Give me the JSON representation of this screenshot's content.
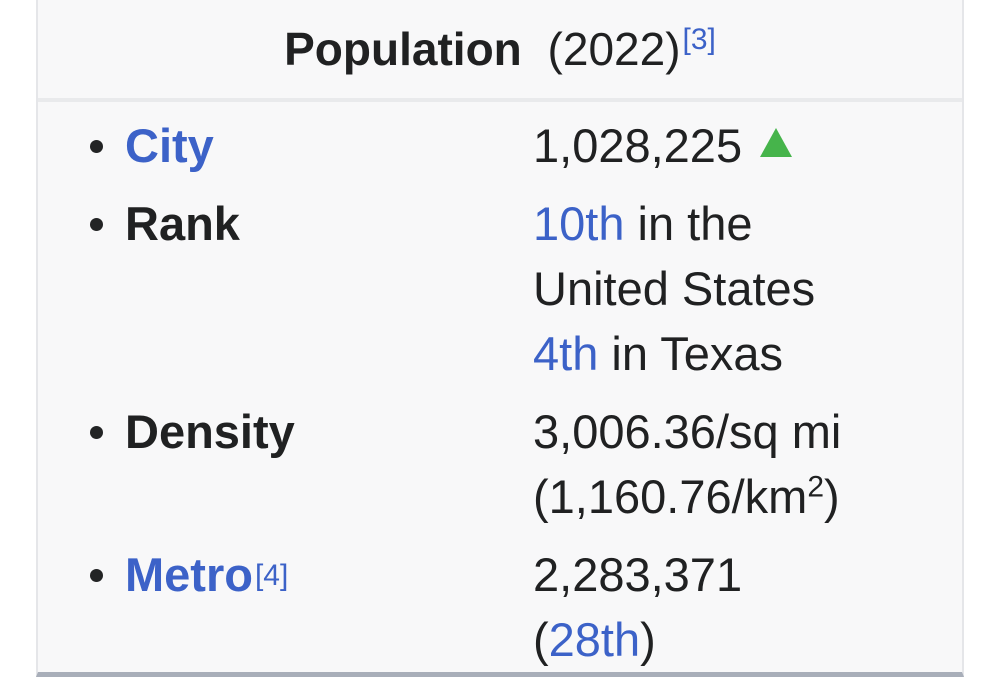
{
  "colors": {
    "link_blue": "#3c62c8",
    "increase_green": "#46b44b",
    "text": "#202122",
    "table_background": "#f8f8f9",
    "side_border": "#e5e6e9",
    "header_divider": "#e9eaec",
    "bottom_border": "#a8aeb9"
  },
  "header": {
    "title": "Population",
    "suffix": "(2022)",
    "ref": "[3]"
  },
  "rows": {
    "city": {
      "label": "City",
      "value": "1,028,225",
      "indicator": "increase"
    },
    "rank": {
      "label": "Rank",
      "value_line1_link": "10th",
      "value_line1_text": " in the",
      "value_line2": "United States",
      "value_line3_link": "4th",
      "value_line3_text": " in Texas"
    },
    "density": {
      "label": "Density",
      "value_line1": "3,006.36/sq mi",
      "value_line2_pre": "(1,160.76/km",
      "value_line2_sup": "2",
      "value_line2_post": ")"
    },
    "metro": {
      "label": "Metro",
      "ref": "[4]",
      "value_line1": "2,283,371",
      "value_line2_pre": "(",
      "value_line2_link": "28th",
      "value_line2_post": ")"
    }
  }
}
